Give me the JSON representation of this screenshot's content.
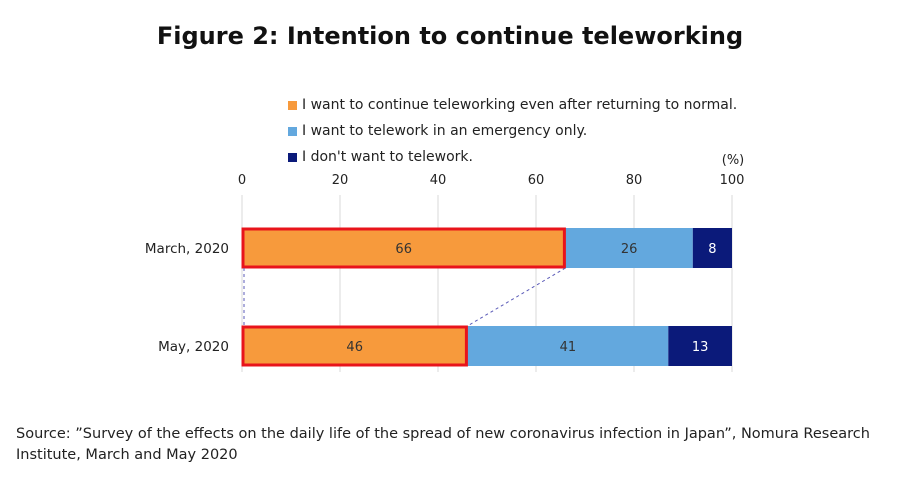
{
  "title": "Figure 2: Intention to continue teleworking",
  "legend": [
    {
      "label": "I want to continue teleworking even after returning to normal.",
      "color": "#F79A3C"
    },
    {
      "label": "I want to telework in an emergency only.",
      "color": "#63A8DE"
    },
    {
      "label": "I don't want to telework.",
      "color": "#0B1A7A"
    }
  ],
  "unit_label": "(%)",
  "source": "Source: ”Survey of the effects on the daily life of the spread of new coronavirus infection in Japan”, Nomura Research Institute, March and May 2020",
  "chart_data": {
    "type": "bar",
    "orientation": "horizontal",
    "stacked": true,
    "title": "Figure 2: Intention to continue teleworking",
    "categories": [
      "March, 2020",
      "May, 2020"
    ],
    "series": [
      {
        "name": "I want to continue teleworking even after returning to normal.",
        "values": [
          66,
          46
        ],
        "color": "#F79A3C"
      },
      {
        "name": "I want to telework in an emergency only.",
        "values": [
          26,
          41
        ],
        "color": "#63A8DE"
      },
      {
        "name": "I don't want to telework.",
        "values": [
          8,
          13
        ],
        "color": "#0B1A7A"
      }
    ],
    "xlim": [
      0,
      100
    ],
    "xticks": [
      0,
      20,
      40,
      60,
      80,
      100
    ],
    "xunit": "(%)",
    "grid": true,
    "legend_position": "top",
    "highlight_series": 0,
    "highlight_color": "#E8141B"
  }
}
